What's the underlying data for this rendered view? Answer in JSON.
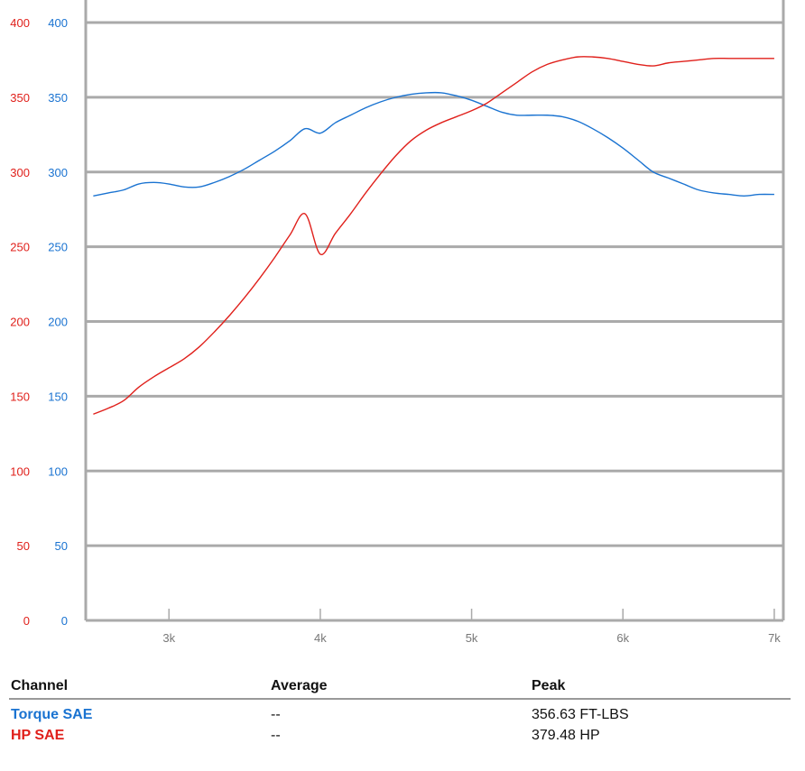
{
  "chart_data": {
    "type": "line",
    "x_ticks": [
      {
        "value": 3000,
        "label": "3k"
      },
      {
        "value": 4000,
        "label": "4k"
      },
      {
        "value": 5000,
        "label": "5k"
      },
      {
        "value": 6000,
        "label": "6k"
      },
      {
        "value": 7000,
        "label": "7k"
      }
    ],
    "xlim": [
      2450,
      7060
    ],
    "ylim": [
      0,
      400
    ],
    "y_ticks": [
      0,
      50,
      100,
      150,
      200,
      250,
      300,
      350,
      400
    ],
    "grid": true,
    "series": [
      {
        "name": "Torque SAE",
        "axis": "left",
        "color": "#1a73d1",
        "x": [
          2500,
          2600,
          2700,
          2800,
          2900,
          3000,
          3100,
          3200,
          3300,
          3400,
          3500,
          3600,
          3700,
          3800,
          3900,
          4000,
          4100,
          4200,
          4300,
          4400,
          4500,
          4600,
          4700,
          4800,
          4900,
          5000,
          5100,
          5200,
          5300,
          5400,
          5500,
          5600,
          5700,
          5800,
          5900,
          6000,
          6100,
          6200,
          6300,
          6400,
          6500,
          6600,
          6700,
          6800,
          6900,
          7000
        ],
        "values": [
          284,
          286,
          288,
          292,
          293,
          292,
          290,
          290,
          293,
          297,
          302,
          308,
          314,
          321,
          329,
          326,
          333,
          338,
          343,
          347,
          350,
          352,
          353,
          353,
          351,
          348,
          344,
          340,
          338,
          338,
          338,
          337,
          334,
          329,
          323,
          316,
          308,
          300,
          296,
          292,
          288,
          286,
          285,
          284,
          285,
          285
        ]
      },
      {
        "name": "HP SAE",
        "axis": "right",
        "color": "#e0201b",
        "x": [
          2500,
          2600,
          2700,
          2800,
          2900,
          3000,
          3100,
          3200,
          3300,
          3400,
          3500,
          3600,
          3700,
          3800,
          3900,
          4000,
          4100,
          4200,
          4300,
          4400,
          4500,
          4600,
          4700,
          4800,
          4900,
          5000,
          5100,
          5200,
          5300,
          5400,
          5500,
          5600,
          5700,
          5800,
          5900,
          6000,
          6100,
          6200,
          6300,
          6400,
          6500,
          6600,
          6700,
          6800,
          6900,
          7000
        ],
        "values": [
          138,
          142,
          147,
          156,
          163,
          169,
          175,
          183,
          193,
          204,
          216,
          229,
          243,
          258,
          272,
          245,
          259,
          272,
          286,
          299,
          311,
          321,
          328,
          333,
          337,
          341,
          346,
          353,
          360,
          367,
          372,
          375,
          377,
          377,
          376,
          374,
          372,
          371,
          373,
          374,
          375,
          376,
          376,
          376,
          376,
          376
        ]
      }
    ]
  },
  "axes": {
    "left_color": "#e0201b",
    "right_color": "#1a73d1"
  },
  "table": {
    "headers": [
      "Channel",
      "Average",
      "Peak"
    ],
    "rows": [
      {
        "channel": "Torque SAE",
        "average": "--",
        "peak": "356.63 FT-LBS",
        "color": "#1a73d1"
      },
      {
        "channel": "HP SAE",
        "average": "--",
        "peak": "379.48 HP",
        "color": "#e0201b"
      }
    ]
  }
}
